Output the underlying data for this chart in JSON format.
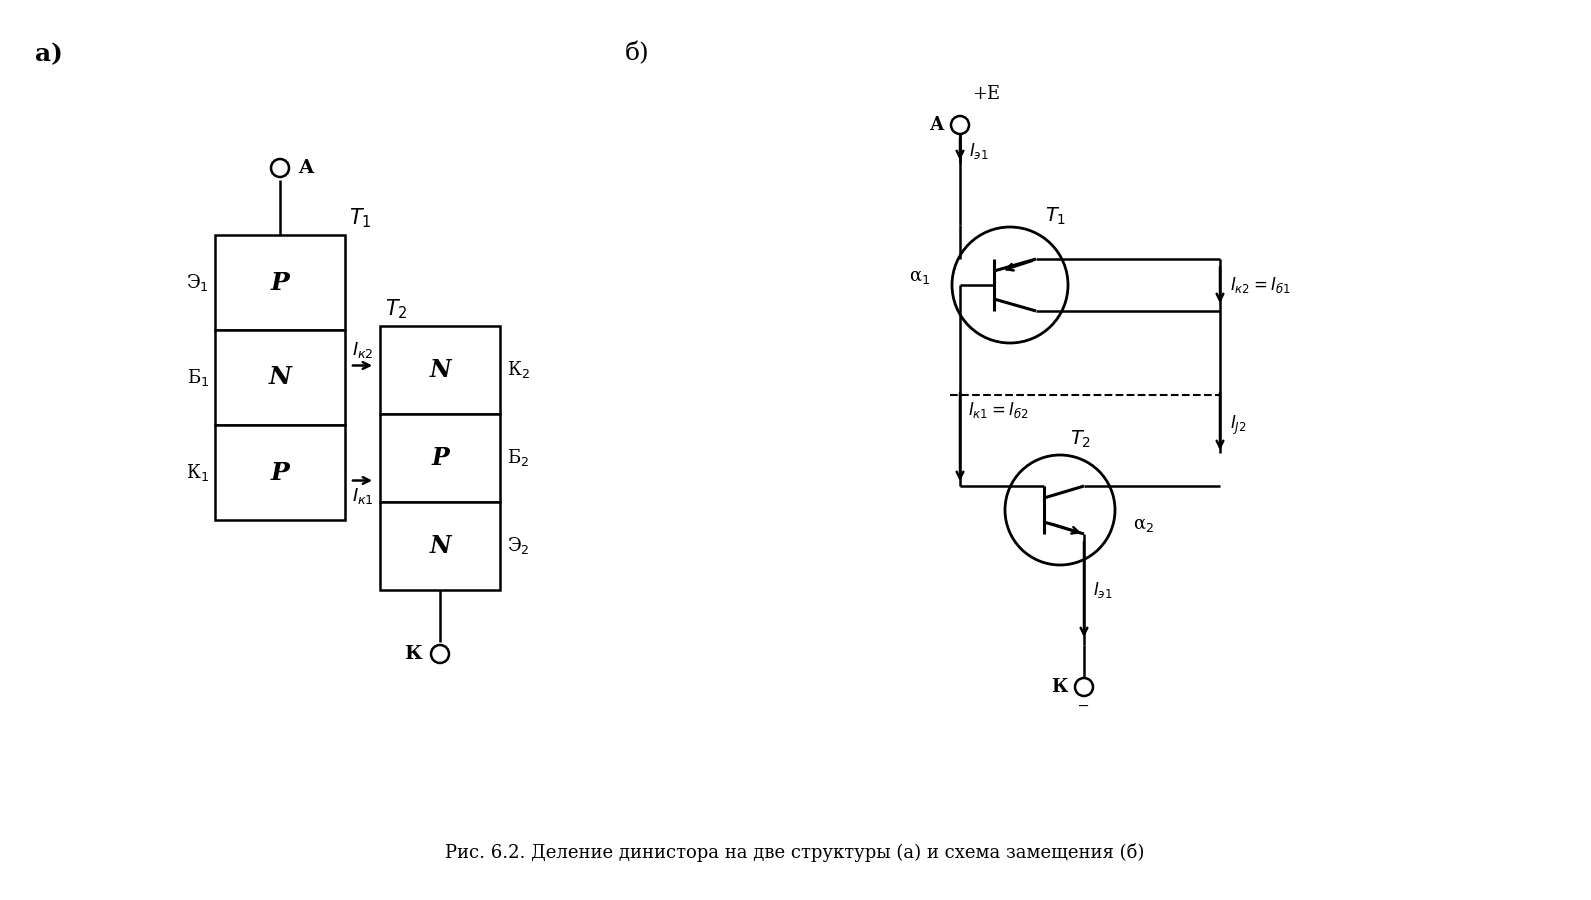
{
  "bg_color": "#ffffff",
  "lc": "#000000",
  "tc": "#000000",
  "caption": "Рис. 6.2. Деление динистора на две структуры (а) и схема замещения (б)",
  "label_a": "а)",
  "label_b": "б)"
}
